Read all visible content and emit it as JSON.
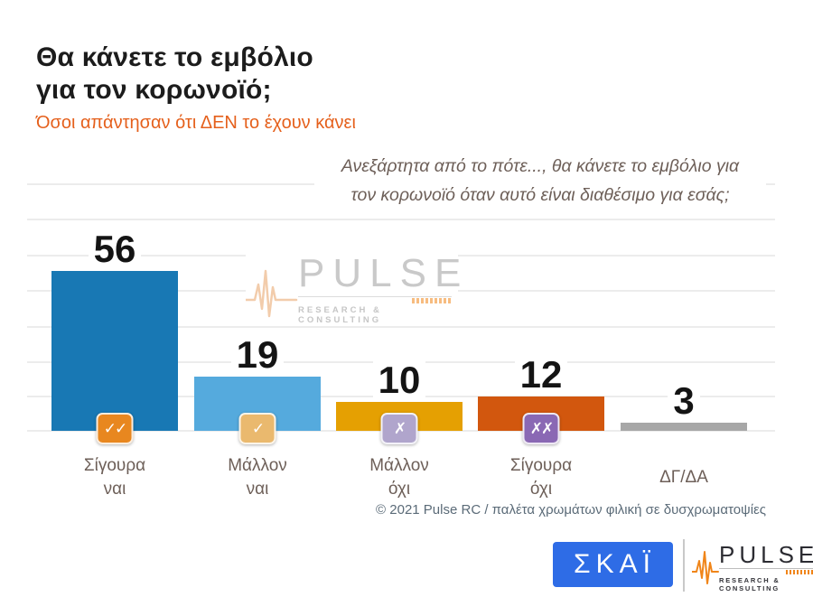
{
  "header": {
    "title_line1": "Θα κάνετε το εμβόλιο",
    "title_line2": "για τον κορωνοϊό;",
    "subtitle": "Όσοι απάντησαν ότι ΔΕΝ το έχουν κάνει"
  },
  "question": {
    "line1": "Ανεξάρτητα από το πότε..., θα κάνετε το εμβόλιο για",
    "line2": "τον κορωνοϊό όταν αυτό είναι διαθέσιμο για εσάς;"
  },
  "chart_data": {
    "type": "bar",
    "title": "Θα κάνετε το εμβόλιο για τον κορωνοϊό;",
    "subtitle": "Όσοι απάντησαν ότι ΔΕΝ το έχουν κάνει",
    "categories": [
      "Σίγουρα ναι",
      "Μάλλον ναι",
      "Μάλλον όχι",
      "Σίγουρα όχι",
      "ΔΓ/ΔΑ"
    ],
    "values": [
      56,
      19,
      10,
      12,
      3
    ],
    "ylim": [
      0,
      60
    ],
    "grid": true,
    "legend": false,
    "bars": [
      {
        "value": 56,
        "label_line1": "Σίγουρα",
        "label_line2": "ναι",
        "color": "#1878b4",
        "icon_glyph": "✓✓",
        "icon_color": "#e8871f"
      },
      {
        "value": 19,
        "label_line1": "Μάλλον",
        "label_line2": "ναι",
        "color": "#55aadd",
        "icon_glyph": "✓",
        "icon_color": "#eab96e"
      },
      {
        "value": 10,
        "label_line1": "Μάλλον",
        "label_line2": "όχι",
        "color": "#e5a002",
        "icon_glyph": "✗",
        "icon_color": "#b0a5cc"
      },
      {
        "value": 12,
        "label_line1": "Σίγουρα",
        "label_line2": "όχι",
        "color": "#d2570e",
        "icon_glyph": "✗✗",
        "icon_color": "#8a68b4"
      },
      {
        "value": 3,
        "label_line1": "ΔΓ/ΔΑ",
        "label_line2": "",
        "color": "#a7a7a7",
        "icon_glyph": "",
        "icon_color": ""
      }
    ]
  },
  "watermark": {
    "brand": "PULSE",
    "tagline": "RESEARCH & CONSULTING"
  },
  "footer": {
    "credit": "© 2021 Pulse RC  /  παλέτα χρωμάτων φιλική σε δυσχρωματοψίες"
  },
  "logos": {
    "skai": "ΣΚΑΪ",
    "pulse_brand": "PULSE",
    "pulse_tagline": "RESEARCH & CONSULTING"
  },
  "colors": {
    "subtitle_orange": "#e5601c",
    "skai_blue": "#2e6ce6",
    "pulse_orange": "#f08519"
  }
}
